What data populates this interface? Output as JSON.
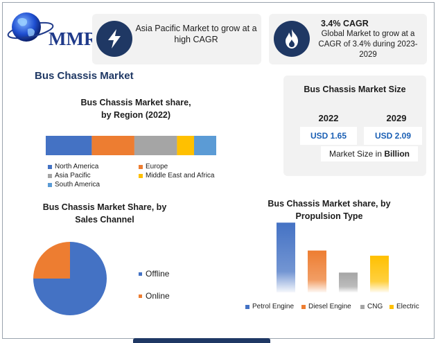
{
  "logo": {
    "text": "MMR"
  },
  "header": {
    "card1": {
      "icon": "lightning-icon",
      "text": "Asia Pacific Market to grow at a high CAGR"
    },
    "card2": {
      "icon": "flame-icon",
      "title": "3.4% CAGR",
      "text": "Global Market to grow at a CAGR of 3.4% during 2023-2029"
    }
  },
  "main_title": "Bus Chassis Market",
  "market_size": {
    "title": "Bus Chassis Market Size",
    "years": [
      "2022",
      "2029"
    ],
    "values": [
      "USD 1.65",
      "USD 2.09"
    ],
    "note_prefix": "Market Size in ",
    "note_unit": "Billion"
  },
  "colors": {
    "brand": "#1f3864",
    "north_america": "#4472c4",
    "europe": "#ed7d31",
    "asia_pacific": "#a5a5a5",
    "mea": "#ffc000",
    "south_america": "#5b9bd5"
  },
  "chart_data": [
    {
      "type": "bar",
      "orientation": "horizontal-stacked",
      "title": "Bus Chassis Market share, by Region (2022)",
      "title_lines": [
        "Bus Chassis Market share,",
        "by Region (2022)"
      ],
      "series": [
        {
          "name": "North America",
          "value": 27,
          "color": "#4472c4"
        },
        {
          "name": "Europe",
          "value": 25,
          "color": "#ed7d31"
        },
        {
          "name": "Asia Pacific",
          "value": 25,
          "color": "#a5a5a5"
        },
        {
          "name": "Middle East and Africa",
          "value": 10,
          "color": "#ffc000"
        },
        {
          "name": "South America",
          "value": 13,
          "color": "#5b9bd5"
        }
      ],
      "legend": "bottom"
    },
    {
      "type": "pie",
      "title": "Bus Chassis Market Share, by Sales Channel",
      "title_lines": [
        "Bus Chassis Market Share, by",
        "Sales Channel"
      ],
      "slices": [
        {
          "name": "Offline",
          "value": 75,
          "color": "#4472c4"
        },
        {
          "name": "Online",
          "value": 25,
          "color": "#ed7d31"
        }
      ],
      "legend": "right"
    },
    {
      "type": "bar",
      "title": "Bus Chassis Market share, by Propulsion Type",
      "title_lines": [
        "Bus Chassis Market share, by",
        "Propulsion Type"
      ],
      "categories": [
        "Petrol Engine",
        "Diesel Engine",
        "CNG",
        "Electric"
      ],
      "values": [
        95,
        57,
        27,
        50
      ],
      "colors": [
        "#4472c4",
        "#ed7d31",
        "#a5a5a5",
        "#ffc000"
      ],
      "ylim": [
        0,
        100
      ],
      "grid": false,
      "legend": "bottom"
    }
  ]
}
